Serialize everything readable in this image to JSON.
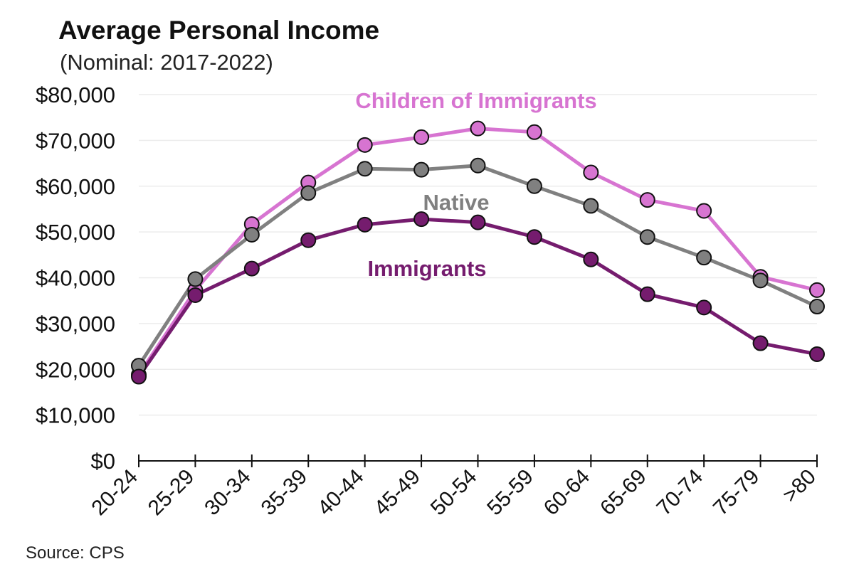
{
  "chart_data": {
    "type": "line",
    "title": "Average Personal Income",
    "subtitle": "(Nominal: 2017-2022)",
    "source": "Source: CPS",
    "xlabel": "",
    "ylabel": "",
    "categories": [
      "20-24",
      "25-29",
      "30-34",
      "35-39",
      "40-44",
      "45-49",
      "50-54",
      "55-59",
      "60-64",
      "65-69",
      "70-74",
      "75-79",
      ">80"
    ],
    "yticks": [
      0,
      10000,
      20000,
      30000,
      40000,
      50000,
      60000,
      70000,
      80000
    ],
    "ytick_labels": [
      "$0",
      "$10,000",
      "$20,000",
      "$30,000",
      "$40,000",
      "$50,000",
      "$60,000",
      "$70,000",
      "$80,000"
    ],
    "ylim": [
      0,
      80000
    ],
    "grid": true,
    "legend": "inline labels",
    "series": [
      {
        "name": "Children of Immigrants",
        "color": "#d774d1",
        "values": [
          18800,
          37300,
          51700,
          60800,
          69000,
          70700,
          72600,
          71800,
          63000,
          57000,
          54600,
          40200,
          37300
        ]
      },
      {
        "name": "Native",
        "color": "#808080",
        "values": [
          20800,
          39700,
          49400,
          58500,
          63800,
          63600,
          64500,
          60000,
          55700,
          48900,
          44400,
          39400,
          33700
        ]
      },
      {
        "name": "Immigrants",
        "color": "#751c6e",
        "values": [
          18400,
          36200,
          42000,
          48200,
          51600,
          52800,
          52100,
          48900,
          44000,
          36400,
          33500,
          25700,
          23300
        ]
      }
    ]
  }
}
